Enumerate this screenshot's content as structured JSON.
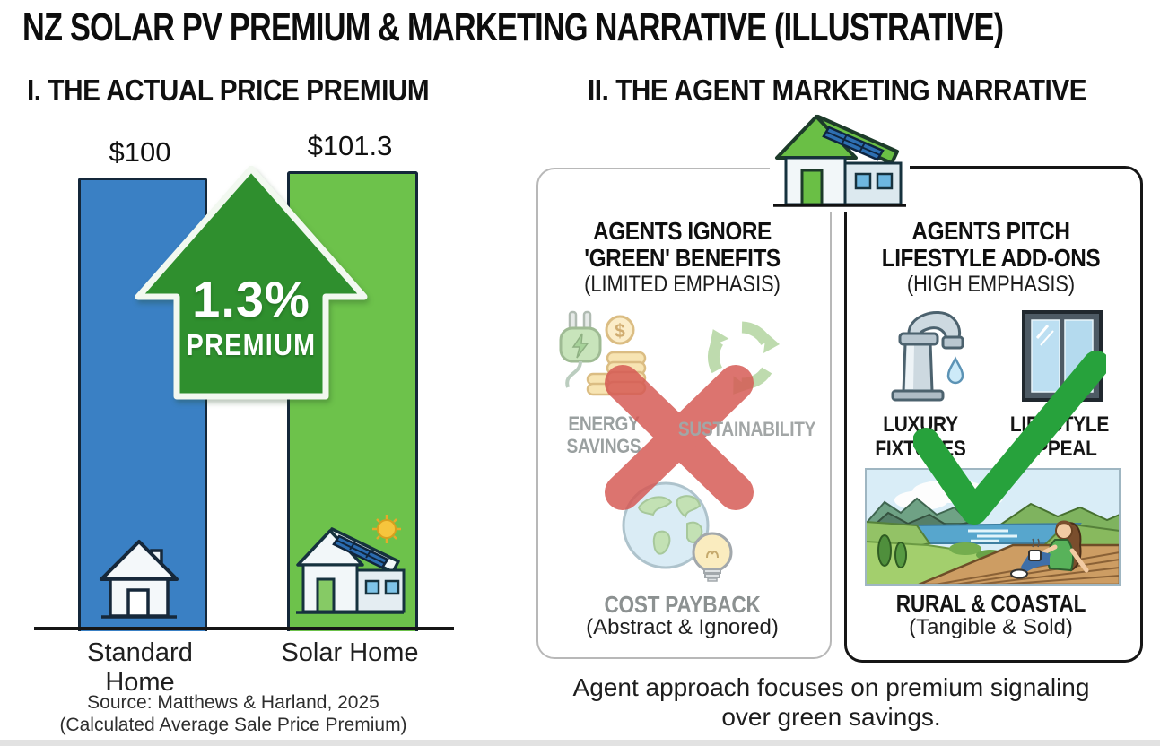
{
  "title": "NZ SOLAR PV PREMIUM & MARKETING NARRATIVE (ILLUSTRATIVE)",
  "section_premium": {
    "heading": "I. THE ACTUAL PRICE PREMIUM",
    "source_line1": "Source: Matthews & Harland, 2025",
    "source_line2": "(Calculated Average Sale Price Premium)"
  },
  "section_narrative": {
    "heading": "II. THE AGENT MARKETING NARRATIVE",
    "caption_line1": "Agent approach focuses on premium signaling",
    "caption_line2": "over green savings."
  },
  "chart_data": {
    "type": "bar",
    "title": "I. THE ACTUAL PRICE PREMIUM",
    "categories": [
      "Standard Home",
      "Solar Home"
    ],
    "values": [
      100,
      101.3
    ],
    "value_labels": [
      "$100",
      "$101.3"
    ],
    "bar_colors": [
      "#3a80c4",
      "#6dc24b"
    ],
    "annotation": {
      "percent": "1.3%",
      "label": "PREMIUM",
      "arrow_color": "#2f8f2e"
    },
    "ylim": [
      0,
      105
    ],
    "grid": false,
    "legend": false
  },
  "panels": {
    "ignore": {
      "heading_line1": "AGENTS IGNORE",
      "heading_line2": "'GREEN' BENEFITS",
      "heading_line3": "(LIMITED EMPHASIS)",
      "item1_line1": "ENERGY",
      "item1_line2": "SAVINGS",
      "item2": "SUSTAINABILITY",
      "item3_title": "COST PAYBACK",
      "item3_sub": "(Abstract & Ignored)",
      "overlay_icon": "red-x-icon",
      "icons": [
        "plug-and-coins-icon",
        "recycle-icon",
        "earth-and-bulb-icon"
      ]
    },
    "pitch": {
      "heading_line1": "AGENTS PITCH",
      "heading_line2": "LIFESTYLE ADD-ONS",
      "heading_line3": "(HIGH EMPHASIS)",
      "item1_line1": "LUXURY",
      "item1_line2": "FIXTURES",
      "item2_line1": "LIFESTYLE",
      "item2_line2": "APPEAL",
      "item3_title": "RURAL & COASTAL",
      "item3_sub": "(Tangible & Sold)",
      "overlay_icon": "green-check-icon",
      "icons": [
        "faucet-icon",
        "window-icon",
        "rural-coastal-scene"
      ]
    }
  },
  "colors": {
    "bar_standard": "#3a80c4",
    "bar_solar": "#6dc24b",
    "arrow_green": "#2f8f2e",
    "red_x": "#d65853",
    "green_check": "#27a23c",
    "muted_text": "#9aa0a0",
    "dark_text": "#1a1a1a",
    "panel_border_light": "#b8b8b8",
    "panel_border_dark": "#161616"
  }
}
